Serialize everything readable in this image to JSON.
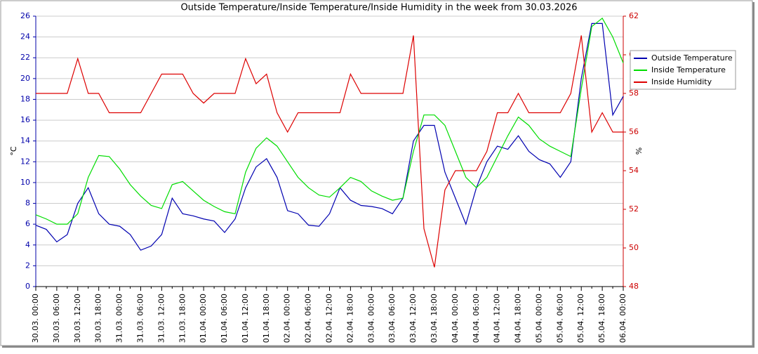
{
  "chart_data": {
    "type": "line",
    "title": "Outside Temperature/Inside Temperature/Inside Humidity in the week from 30.03.2026",
    "y_label": "°C",
    "y2_label": "%",
    "x": [
      "30.03. 00:00",
      null,
      "30.03. 06:00",
      null,
      "30.03. 12:00",
      null,
      "30.03. 18:00",
      null,
      "31.03. 00:00",
      null,
      "31.03. 06:00",
      null,
      "31.03. 12:00",
      null,
      "31.03. 18:00",
      null,
      "01.04. 00:00",
      null,
      "01.04. 06:00",
      null,
      "01.04. 12:00",
      null,
      "01.04. 18:00",
      null,
      "02.04. 00:00",
      null,
      "02.04. 06:00",
      null,
      "02.04. 12:00",
      null,
      "02.04. 18:00",
      null,
      "03.04. 00:00",
      null,
      "03.04. 06:00",
      null,
      "03.04. 12:00",
      null,
      "03.04. 18:00",
      null,
      "04.04. 00:00",
      null,
      "04.04. 06:00",
      null,
      "04.04. 12:00",
      null,
      "04.04. 18:00",
      null,
      "05.04. 00:00",
      null,
      "05.04. 06:00",
      null,
      "05.04. 12:00",
      null,
      "05.04. 18:00",
      null,
      "06.04. 00:00"
    ],
    "series": [
      {
        "name": "Outside Temperature",
        "color": "#0000b0",
        "axis": "y",
        "values": [
          5.9,
          5.5,
          4.3,
          5.0,
          8.0,
          9.5,
          7.0,
          6.0,
          5.8,
          5.0,
          3.5,
          3.9,
          5.0,
          8.5,
          7.0,
          6.8,
          6.5,
          6.3,
          5.2,
          6.5,
          9.5,
          11.5,
          12.3,
          10.5,
          7.3,
          7.0,
          5.9,
          5.8,
          7.0,
          9.5,
          8.3,
          7.8,
          7.7,
          7.5,
          7.0,
          8.5,
          14.0,
          15.5,
          15.5,
          11.0,
          8.5,
          6.0,
          9.5,
          12.0,
          13.5,
          13.2,
          14.5,
          13.0,
          12.2,
          11.8,
          10.5,
          12.0,
          20.0,
          25.3,
          25.3,
          16.5,
          18.3
        ]
      },
      {
        "name": "Inside Temperature",
        "color": "#00dd00",
        "axis": "y",
        "values": [
          6.9,
          6.5,
          6.0,
          6.0,
          7.0,
          10.5,
          12.6,
          12.5,
          11.3,
          9.8,
          8.7,
          7.8,
          7.5,
          9.8,
          10.1,
          9.2,
          8.3,
          7.7,
          7.2,
          7.0,
          11.0,
          13.3,
          14.3,
          13.5,
          12.0,
          10.5,
          9.5,
          8.8,
          8.6,
          9.5,
          10.5,
          10.1,
          9.2,
          8.7,
          8.3,
          8.5,
          13.0,
          16.5,
          16.5,
          15.5,
          13.0,
          10.5,
          9.5,
          10.5,
          12.5,
          14.5,
          16.3,
          15.5,
          14.2,
          13.5,
          13.0,
          12.5,
          19.0,
          25.0,
          25.8,
          24.0,
          21.5
        ]
      },
      {
        "name": "Inside Humidity",
        "color": "#dd0000",
        "axis": "y2",
        "values": [
          58,
          58,
          58,
          58,
          59.8,
          58,
          58,
          57,
          57,
          57,
          57,
          58,
          59,
          59,
          59,
          58,
          57.5,
          58,
          58,
          58,
          59.8,
          58.5,
          59,
          57,
          56,
          57,
          57,
          57,
          57,
          57,
          59,
          58,
          58,
          58,
          58,
          58,
          61,
          51,
          49,
          53,
          54,
          54,
          54,
          55,
          57,
          57,
          58,
          57,
          57,
          57,
          57,
          58,
          61,
          56,
          57,
          56,
          56
        ]
      }
    ],
    "ylim": [
      0,
      26
    ],
    "yticks": [
      0,
      2,
      4,
      6,
      8,
      10,
      12,
      14,
      16,
      18,
      20,
      22,
      24,
      26
    ],
    "y2lim": [
      48,
      62
    ],
    "y2ticks": [
      48,
      50,
      52,
      54,
      56,
      58,
      60,
      62
    ],
    "grid": true,
    "legend": "right"
  }
}
